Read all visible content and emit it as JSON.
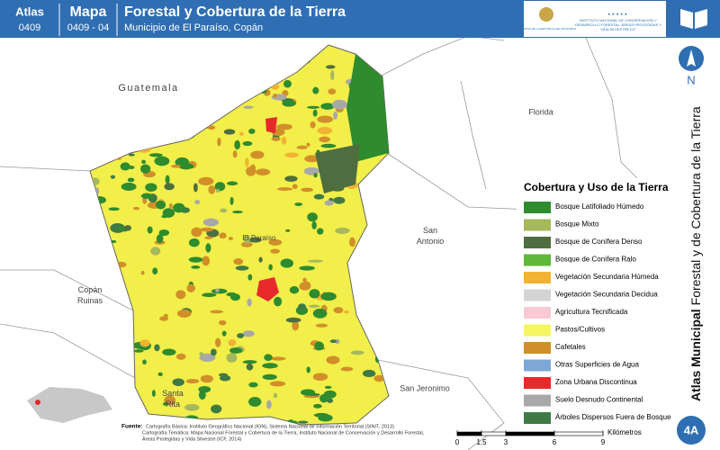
{
  "header": {
    "atlas_label": "Atlas",
    "atlas_number": "0409",
    "mapa_label": "Mapa",
    "mapa_number": "0409 - 04",
    "title": "Forestal y Cobertura de la Tierra",
    "subtitle": "Municipio de El Paraíso, Copán",
    "logo_left": "GOBIERNO DE LA REPÚBLICA DE HONDURAS",
    "logo_right": "INSTITUTO NACIONAL DE CONSERVACIÓN Y DESARROLLO FORESTAL, ÁREAS PROTEGIDAS Y VIDA SILVESTRE ICF"
  },
  "north": "N",
  "place_labels": [
    "Guatemala",
    "Florida",
    "San Antonio",
    "Copán Ruinas",
    "El Paraíso",
    "Santa Rita",
    "San Jeronimo"
  ],
  "legend": {
    "title": "Cobertura y Uso de la Tierra",
    "items": [
      {
        "label": "Bosque Latifoliado Húmedo",
        "color": "#2e8b2e"
      },
      {
        "label": "Bosque Mixto",
        "color": "#a6b85c"
      },
      {
        "label": "Bosque de Conífera Denso",
        "color": "#4f6e3f"
      },
      {
        "label": "Bosque de Conífera Ralo",
        "color": "#5fb83a"
      },
      {
        "label": "Vegetación Secundaria Húmeda",
        "color": "#f2b233"
      },
      {
        "label": "Vegetación Secundaria Decidua",
        "color": "#d4d4d4"
      },
      {
        "label": "Agricultura Tecnificada",
        "color": "#f9c9d4"
      },
      {
        "label": "Pastos/Cultivos",
        "color": "#f7f55f"
      },
      {
        "label": "Cafetales",
        "color": "#d18f2a"
      },
      {
        "label": "Otras Superficies de Agua",
        "color": "#7fa7d6"
      },
      {
        "label": "Zona Urbana Discontinua",
        "color": "#e8292c"
      },
      {
        "label": "Suelo Desnudo Continental",
        "color": "#a8a8a8"
      },
      {
        "label": "Árboles Dispersos Fuera de Bosque",
        "color": "#3f7a45"
      }
    ]
  },
  "side_title_bold": "Atlas Municipal",
  "side_title_rest": "Forestal y de Cobertura de la Tierra",
  "sources": {
    "label": "Fuente:",
    "lines": [
      "Cartografía Básica: Instituto Geográfico Nacional (IGN), Sistema Nacional de Información Territorial (SINIT, 2013)",
      "Cartografía Temática: Mapa Nacional Forestal y Cobertura de la Tierra, Instituto Nacional de Conservación y Desarrollo Forestal,",
      "Áreas Protegidas y Vida Silvestre (ICF, 2014)"
    ]
  },
  "scale_bar": {
    "ticks": [
      0,
      1.5,
      3,
      6,
      9
    ],
    "unit": "Kilómetros"
  },
  "page_badge": "4A"
}
